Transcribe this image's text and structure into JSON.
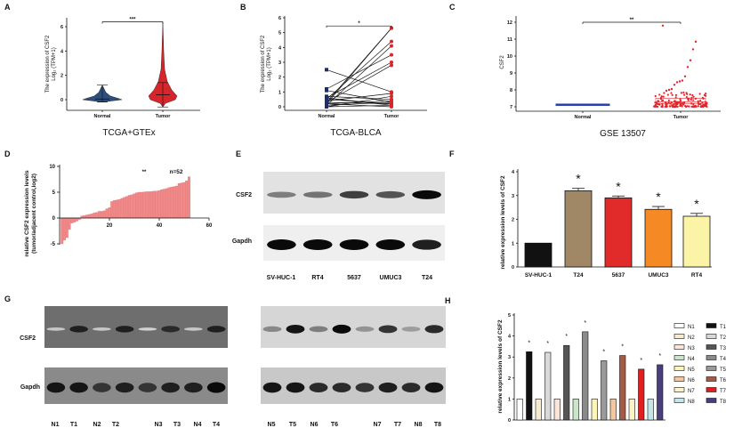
{
  "panels": {
    "A": "A",
    "B": "B",
    "C": "C",
    "D": "D",
    "E": "E",
    "F": "F",
    "G": "G",
    "H": "H"
  },
  "chart_data": [
    {
      "panel": "A",
      "type": "violin",
      "title": "TCGA+GTEx",
      "ylabel": "The expression of CSF2",
      "ylabel2": "Log₂ (TPM+1)",
      "categories": [
        "Normal",
        "Tumor"
      ],
      "yticks": [
        "0",
        "2",
        "4",
        "6"
      ],
      "ylim": [
        -0.9,
        6.6
      ],
      "colors": [
        "#2e4f7c",
        "#d7262b"
      ],
      "median": [
        0.05,
        0.4
      ],
      "whisker_low": [
        -0.2,
        -0.6
      ],
      "whisker_high": [
        1.2,
        1.4
      ],
      "max": [
        1.2,
        6.4
      ],
      "significance": "***"
    },
    {
      "panel": "B",
      "type": "paired-line",
      "title": "TCGA-BLCA",
      "ylabel": "The expression of CSF2",
      "ylabel2": "Log₂ (TPM+1)",
      "categories": [
        "Normal",
        "Tumor"
      ],
      "yticks": [
        "0",
        "1",
        "2",
        "3",
        "4",
        "5",
        "6"
      ],
      "ylim": [
        -0.3,
        6.2
      ],
      "colors": [
        "#1f2d6b",
        "#d7262b"
      ],
      "pairs": [
        [
          0.3,
          5.3
        ],
        [
          0.2,
          5.3
        ],
        [
          0.5,
          4.4
        ],
        [
          0.1,
          4.1
        ],
        [
          1.2,
          3.5
        ],
        [
          0.6,
          3.0
        ],
        [
          0.3,
          2.8
        ],
        [
          2.5,
          1.0
        ],
        [
          0.4,
          0.9
        ],
        [
          0.0,
          0.7
        ],
        [
          0.7,
          0.5
        ],
        [
          0.2,
          0.4
        ],
        [
          1.1,
          0.3
        ],
        [
          0.1,
          0.3
        ],
        [
          0.5,
          0.2
        ],
        [
          0.3,
          0.2
        ],
        [
          0.0,
          0.1
        ],
        [
          0.6,
          0.1
        ],
        [
          0.2,
          0.0
        ]
      ],
      "significance": "*"
    },
    {
      "panel": "C",
      "type": "box-scatter",
      "title": "GSE 13507",
      "ylabel": "CSF2",
      "categories": [
        "Normal",
        "Tumor"
      ],
      "yticks": [
        "7",
        "8",
        "9",
        "10",
        "11",
        "12"
      ],
      "ylim": [
        6.8,
        12.3
      ],
      "colors": [
        "#2b3fae",
        "#e0262b"
      ],
      "normal": {
        "median": 7.12,
        "q1": 7.08,
        "q3": 7.16,
        "min": 7.0,
        "max": 7.25
      },
      "tumor": {
        "median": 7.3,
        "q1": 7.2,
        "q3": 7.5,
        "min": 7.0,
        "max": 7.9
      },
      "tumor_outliers": [
        11.8,
        10.85,
        10.4,
        9.75,
        9.35,
        8.8,
        8.55,
        8.5,
        8.45,
        8.3,
        8.05,
        8.0,
        7.95
      ],
      "significance": "**"
    },
    {
      "panel": "D",
      "type": "bar",
      "ylabel": "relative CSF2 expression levels",
      "ylabel2": "(tumor/adjacent control,log2)",
      "xticks": [
        "20",
        "40",
        "60"
      ],
      "yticks": [
        "10",
        "5",
        "0",
        "-5"
      ],
      "xlim": [
        0,
        60
      ],
      "ylim": [
        -5,
        10
      ],
      "color": "#f08a8a",
      "annotation": "**",
      "n_label": "n=52",
      "values": [
        -5,
        -4.3,
        -3.8,
        -2.2,
        -1,
        -0.8,
        -0.6,
        -0.3,
        0.4,
        0.5,
        0.6,
        0.7,
        0.8,
        1.0,
        1.1,
        1.3,
        1.3,
        1.4,
        1.8,
        2,
        3.2,
        3.4,
        3.5,
        3.6,
        3.8,
        4.0,
        4.2,
        4.4,
        4.5,
        4.7,
        4.9,
        5.0,
        5.0,
        5.05,
        5.1,
        5.1,
        5.15,
        5.2,
        5.2,
        5.3,
        5.5,
        5.6,
        5.7,
        5.9,
        6.0,
        6.1,
        6.2,
        6.7,
        6.8,
        6.9,
        7.2,
        8.0
      ]
    },
    {
      "panel": "F",
      "type": "bar",
      "ylabel": "relative expression levels of CSF2",
      "categories": [
        "SV-HUC-1",
        "T24",
        "5637",
        "UMUC3",
        "RT4"
      ],
      "values": [
        1.0,
        3.2,
        2.9,
        2.42,
        2.13
      ],
      "errors": [
        0,
        0.1,
        0.08,
        0.12,
        0.12
      ],
      "stars": [
        "",
        "*",
        "*",
        "*",
        "*"
      ],
      "colors": [
        "#111111",
        "#a08766",
        "#e12a2a",
        "#f58a25",
        "#fbf3a6"
      ],
      "yticks": [
        "0",
        "1",
        "2",
        "3",
        "4"
      ],
      "ylim": [
        0,
        4
      ]
    },
    {
      "panel": "H",
      "type": "bar",
      "ylabel": "relative expression levels of CSF2",
      "categories": [
        "N1",
        "T1",
        "N2",
        "T2",
        "N3",
        "T3",
        "N4",
        "T4",
        "N5",
        "T5",
        "N6",
        "T6",
        "N7",
        "T7",
        "N8",
        "T8"
      ],
      "values": [
        1,
        3.25,
        1,
        3.22,
        1,
        3.55,
        1,
        4.2,
        1,
        2.82,
        1,
        3.07,
        1,
        2.42,
        1,
        2.63
      ],
      "stars": [
        "",
        "*",
        "",
        "*",
        "",
        "*",
        "",
        "*",
        "",
        "*",
        "",
        "*",
        "",
        "*",
        "",
        "*"
      ],
      "colors": [
        "#ffffff",
        "#111111",
        "#f7ecd0",
        "#d9d9d9",
        "#fbe4d8",
        "#555555",
        "#c9e6c8",
        "#8a8a8a",
        "#fbf6b8",
        "#9a9a9a",
        "#f6c79c",
        "#a45a44",
        "#fdf2c8",
        "#e02020",
        "#c4e6ea",
        "#4a3f7e"
      ],
      "legend_order": [
        "N1",
        "T1",
        "N2",
        "T2",
        "N3",
        "T3",
        "N4",
        "T4",
        "N5",
        "T5",
        "N6",
        "T6",
        "N7",
        "T7",
        "N8",
        "T8"
      ],
      "yticks": [
        "0",
        "1",
        "2",
        "3",
        "4",
        "5"
      ],
      "ylim": [
        0,
        5
      ]
    }
  ],
  "blots": {
    "E": {
      "rows": [
        "CSF2",
        "Gapdh"
      ],
      "lanes": [
        "SV-HUC-1",
        "RT4",
        "5637",
        "UMUC3",
        "T24"
      ],
      "intensity": {
        "CSF2": [
          0.45,
          0.5,
          0.75,
          0.65,
          1.0
        ],
        "Gapdh": [
          1,
          1,
          1,
          1,
          0.9
        ]
      }
    },
    "G": {
      "rows": [
        "CSF2",
        "Gapdh"
      ],
      "lanes_left": [
        "N1",
        "T1",
        "N2",
        "T2",
        "N3",
        "T3",
        "N4",
        "T4"
      ],
      "lanes_right": [
        "N5",
        "T5",
        "N6",
        "T6",
        "N7",
        "T7",
        "N8",
        "T8"
      ],
      "intensity_left": {
        "CSF2": [
          0.1,
          0.9,
          0.1,
          0.9,
          0.05,
          0.85,
          0.1,
          0.9
        ],
        "Gapdh": [
          0.95,
          0.95,
          0.8,
          0.9,
          0.8,
          0.9,
          0.9,
          1
        ]
      },
      "intensity_right": {
        "CSF2": [
          0.4,
          0.95,
          0.45,
          1,
          0.35,
          0.8,
          0.3,
          0.85
        ],
        "Gapdh": [
          0.95,
          0.95,
          0.85,
          0.85,
          0.8,
          0.9,
          0.85,
          0.95
        ]
      }
    }
  }
}
